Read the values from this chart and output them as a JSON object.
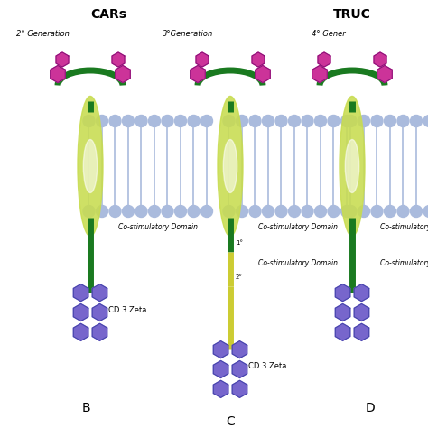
{
  "bg_color": "#ffffff",
  "title_cars": "CARs",
  "title_truc": "TRUC",
  "label_2gen": "2° Generation",
  "label_3gen": "3°Generation",
  "label_4gen": "4° Gener",
  "label_b": "B",
  "label_c": "C",
  "label_d": "D",
  "label_cd3_b": "CD 3 Zeta",
  "label_cd3_c": "CD 3 Zeta",
  "label_costim_b": "Co-stimulatory Domain",
  "label_costim_c1": "Co-stimulatory Domain",
  "label_costim_c2": "Co-stimulatory Domain",
  "color_green": "#1a7a20",
  "color_yellow_green": "#c8dc50",
  "color_membrane_blue": "#aabbdd",
  "color_purple_hex": "#7766cc",
  "color_magenta": "#cc3399",
  "color_stem_yellow": "#cccc33",
  "color_yg_light": "#dde878"
}
